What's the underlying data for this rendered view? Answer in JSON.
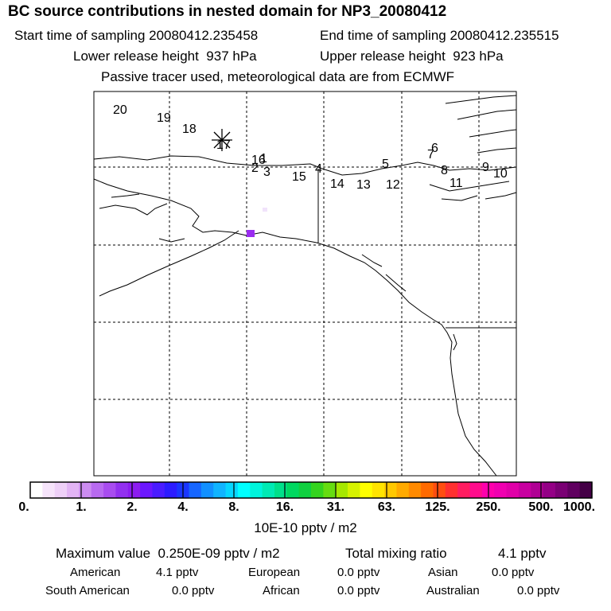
{
  "title": "BC  source contributions in nested domain for NP3_20080412",
  "header": {
    "start_label": "Start time of sampling",
    "start_value": "20080412.235458",
    "end_label": "End time of sampling",
    "end_value": "20080412.235515",
    "lower_label": "Lower release height",
    "lower_value": "937 hPa",
    "upper_label": "Upper release height",
    "upper_value": "923 hPa",
    "note": "Passive tracer used, meteorological data are from ECMWF"
  },
  "chart_data": {
    "type": "map",
    "track_labels": [
      "20",
      "19",
      "18",
      "17",
      "16",
      "1",
      "2",
      "3",
      "15",
      "4",
      "14",
      "13",
      "5",
      "12",
      "7",
      "6",
      "8",
      "11",
      "9",
      "10"
    ],
    "source_cells": [
      {
        "name": "main",
        "value_range": "1.-2.",
        "color": "#9a2cf0"
      },
      {
        "name": "faint",
        "value_range": "0.-1.",
        "color": "#f1e3fb"
      }
    ],
    "colorbar": {
      "tick_labels": [
        "0.",
        "1.",
        "2.",
        "4.",
        "8.",
        "16.",
        "31.",
        "63.",
        "125.",
        "250.",
        "500.",
        "1000."
      ],
      "colors": [
        "#ffffff",
        "#f6e4fb",
        "#eed0f8",
        "#e2b4f5",
        "#cc8cf1",
        "#b86af0",
        "#a84cef",
        "#9230ef",
        "#8c1cf0",
        "#6c18ff",
        "#4a1cff",
        "#2c1cff",
        "#1a36ff",
        "#1666ff",
        "#1290ff",
        "#10b4ff",
        "#06d6ff",
        "#00ffff",
        "#00f4dc",
        "#00eab4",
        "#00e08a",
        "#00d860",
        "#10d040",
        "#34d41e",
        "#66dc10",
        "#a6e800",
        "#d6f200",
        "#ffff00",
        "#ffe400",
        "#ffc800",
        "#ffaa00",
        "#ff8a00",
        "#ff6a00",
        "#ff4e10",
        "#ff3030",
        "#ff1c60",
        "#ff0c8c",
        "#ff00ac",
        "#f000b0",
        "#e000a8",
        "#c800a0",
        "#b00094",
        "#940086",
        "#7a0074",
        "#600060",
        "#440046"
      ],
      "units": "10E-10 pptv / m2"
    }
  },
  "summary": {
    "max_label": "Maximum value",
    "max_value": "0.250E-09 pptv / m2",
    "total_label": "Total mixing ratio",
    "total_value": "4.1 pptv",
    "regions": [
      {
        "name": "American",
        "value": "4.1 pptv"
      },
      {
        "name": "European",
        "value": "0.0 pptv"
      },
      {
        "name": "Asian",
        "value": "0.0 pptv"
      },
      {
        "name": "South American",
        "value": "0.0 pptv"
      },
      {
        "name": "African",
        "value": "0.0 pptv"
      },
      {
        "name": "Australian",
        "value": "0.0 pptv"
      }
    ]
  }
}
